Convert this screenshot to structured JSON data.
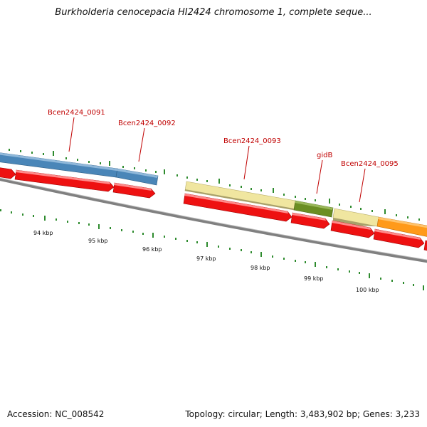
{
  "header": {
    "title": "Burkholderia cenocepacia HI2424 chromosome 1, complete seque..."
  },
  "footer": {
    "accession": "Accession: NC_008542",
    "summary": "Topology: circular; Length: 3,483,902 bp; Genes: 3,233"
  },
  "genes": [
    {
      "name": "Bcen2424_0091",
      "color": "#4a86b8"
    },
    {
      "name": "Bcen2424_0092",
      "color": "#4a86b8"
    },
    {
      "name": "Bcen2424_0093",
      "color": "#f0e6a0"
    },
    {
      "name": "gidB",
      "color": "#6b8e23"
    },
    {
      "name": "Bcen2424_0095",
      "color": "#f0e6a0"
    }
  ],
  "ticks": [
    "94 kbp",
    "95 kbp",
    "96 kbp",
    "97 kbp",
    "98 kbp",
    "99 kbp",
    "100 kbp"
  ],
  "colors": {
    "cds_strand": "#ee1111",
    "backbone": "#808080",
    "tick": "#2e8b2e",
    "orange_gene": "#ff9a1a"
  }
}
